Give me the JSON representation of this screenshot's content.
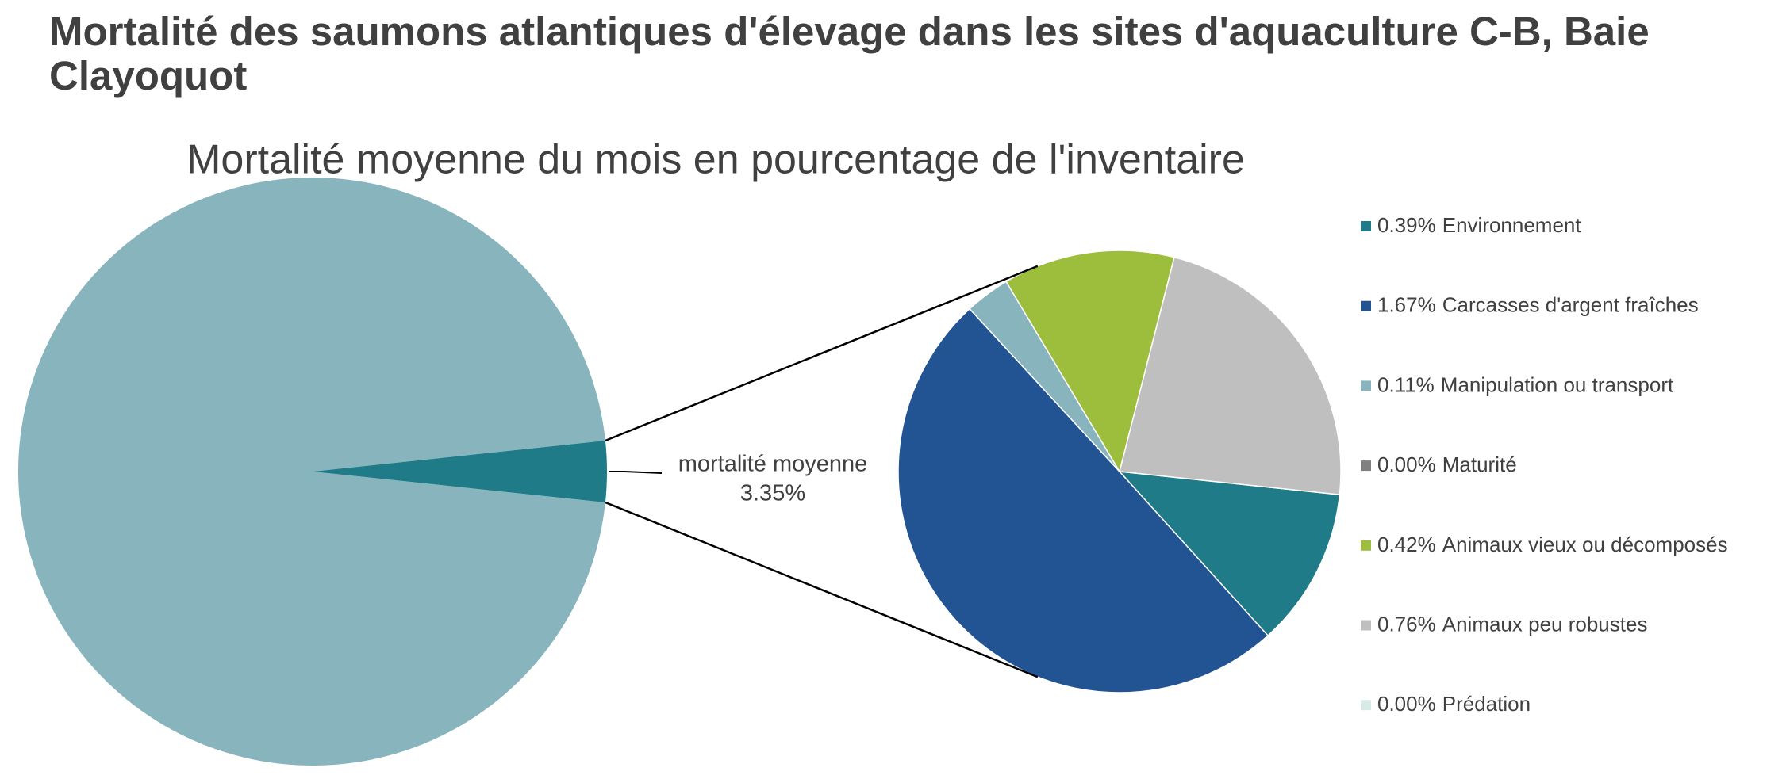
{
  "chart_data": {
    "type": "pie-of-pie",
    "title": "Mortalité des saumons atlantiques d'élevage dans les sites d'aquaculture C-B, Baie Clayoquot",
    "subtitle": "Mortalité moyenne du mois en pourcentage de l'inventaire",
    "main": {
      "labels": [
        null,
        "mortalité moyenne"
      ],
      "values": [
        96.65,
        3.35
      ],
      "value_labels": [
        null,
        "3.35%"
      ],
      "colors": [
        "#87b4bd",
        "#1e7b87"
      ]
    },
    "detail": {
      "categories": [
        "Environnement",
        "Carcasses d'argent fraîches",
        "Manipulation ou transport",
        "Maturité",
        "Animaux vieux ou décomposés",
        "Animaux peu robustes",
        "Prédation"
      ],
      "values": [
        0.39,
        1.67,
        0.11,
        0,
        0.42,
        0.76,
        0
      ],
      "value_labels": [
        "0.39%",
        "1.67%",
        "0.11%",
        "0.00%",
        "0.42%",
        "0.76%",
        "0.00%"
      ],
      "colors": [
        "#1e7b87",
        "#225494",
        "#87b4bd",
        "#808080",
        "#9cbe3c",
        "#bfbfbf",
        "#d6ebe6"
      ]
    }
  }
}
